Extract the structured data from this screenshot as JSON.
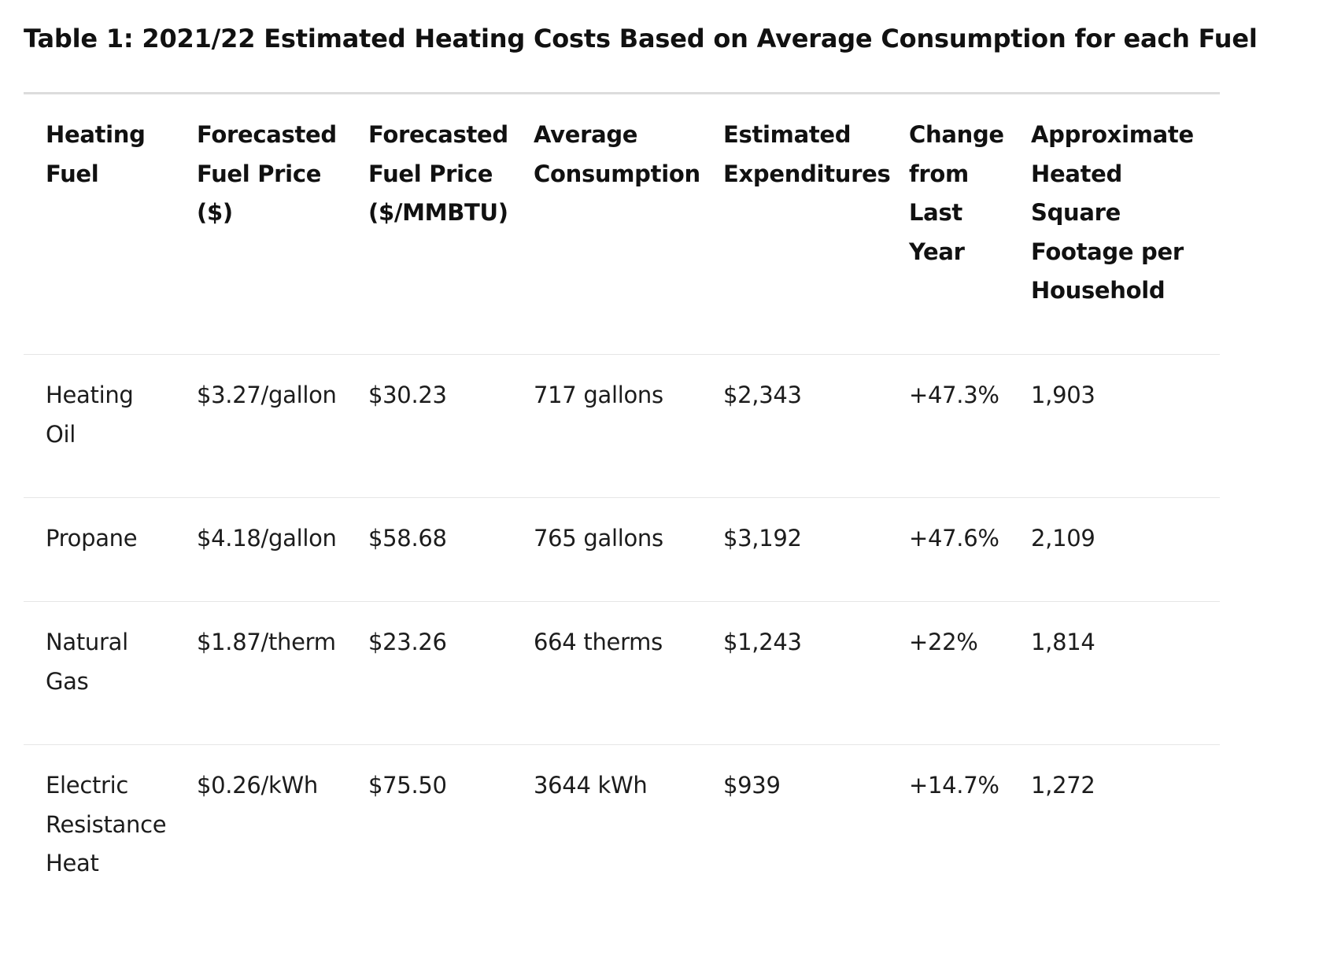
{
  "caption": "Table 1: 2021/22 Estimated Heating Costs Based on Average Consumption for each Fuel",
  "table": {
    "headers": [
      "Heating\nFuel",
      "Forecasted\nFuel Price\n($)",
      "Forecasted\nFuel Price\n($/MMBTU)",
      "Average\nConsumption",
      "Estimated\nExpenditures",
      "Change\nfrom\nLast\nYear",
      "Approximate\nHeated\nSquare\nFootage per\nHousehold"
    ],
    "rows": [
      [
        "Heating\nOil",
        "$3.27/gallon",
        "$30.23",
        "717 gallons",
        "$2,343",
        "+47.3%",
        "1,903"
      ],
      [
        "Propane",
        "$4.18/gallon",
        "$58.68",
        "765 gallons",
        "$3,192",
        "+47.6%",
        "2,109"
      ],
      [
        "Natural\nGas",
        "$1.87/therm",
        "$23.26",
        "664 therms",
        "$1,243",
        "+22%",
        "1,814"
      ],
      [
        "Electric\nResistance\nHeat",
        "$0.26/kWh",
        "$75.50",
        "3644 kWh",
        "$939",
        "+14.7%",
        "1,272"
      ]
    ]
  }
}
